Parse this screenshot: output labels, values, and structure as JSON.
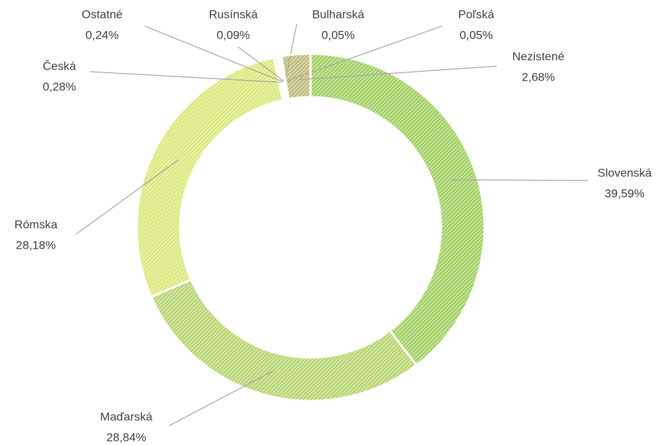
{
  "chart_data": {
    "type": "donut",
    "categories": [
      "Slovenská",
      "Maďarská",
      "Rómska",
      "Česká",
      "Ostatné",
      "Rusínská",
      "Bulharská",
      "Poľská",
      "Nezistené"
    ],
    "values": [
      39.59,
      28.84,
      28.18,
      0.28,
      0.24,
      0.09,
      0.05,
      0.05,
      2.68
    ],
    "value_labels": [
      "39,59%",
      "28,84%",
      "28,18%",
      "0,28%",
      "0,24%",
      "0,09%",
      "0,05%",
      "0,05%",
      "2,68%"
    ],
    "colors": [
      "#8cc640",
      "#a8cc52",
      "#d2e35c",
      "#e6ee9c",
      "#f2f5d0",
      "#d9dd9a",
      "#c9c98a",
      "#bfc47a",
      "#b2ad62"
    ]
  }
}
